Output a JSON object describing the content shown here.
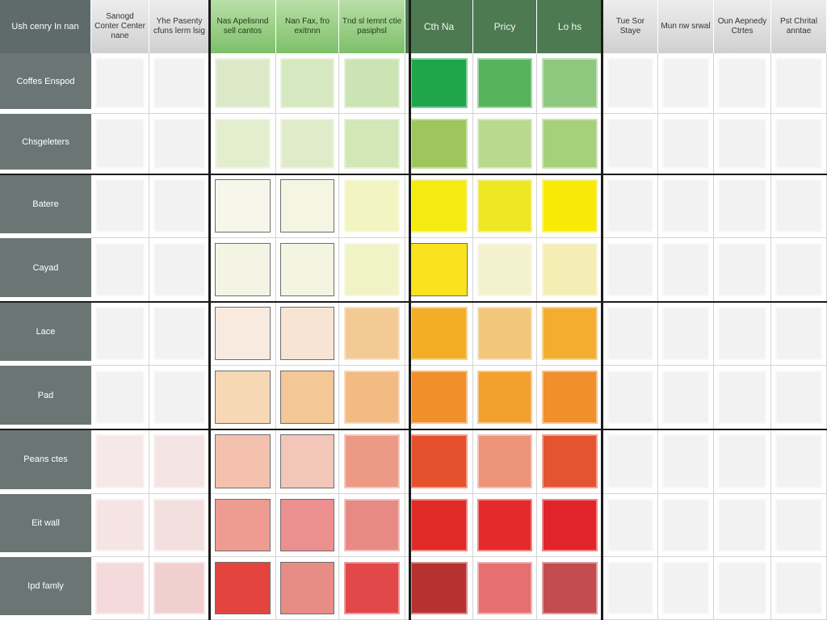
{
  "chart_data": {
    "type": "heatmap",
    "corner_label": "Ush cenry In nan",
    "columns": [
      {
        "label": "Sanogd Conter Center nane",
        "header_style": "gray"
      },
      {
        "label": "Yhe Pasenty cfuns lerm lsig",
        "header_style": "gray"
      },
      {
        "label": "Nas Apelisnnd sell cantos",
        "header_style": "light-green"
      },
      {
        "label": "Nan Fax, fro exitnnn",
        "header_style": "light-green"
      },
      {
        "label": "Tnd sl Iemnt ctie pasiphsl",
        "header_style": "light-green"
      },
      {
        "label": "Cth Na",
        "header_style": "dark-green"
      },
      {
        "label": "Pricy",
        "header_style": "dark-green"
      },
      {
        "label": "Lo hs",
        "header_style": "dark-green"
      },
      {
        "label": "Tue Sor Staye",
        "header_style": "gray"
      },
      {
        "label": "Mun nw srwal",
        "header_style": "gray"
      },
      {
        "label": "Oun Aepnedy Ctrtes",
        "header_style": "gray"
      },
      {
        "label": "Pst Chrital anntae",
        "header_style": "gray"
      }
    ],
    "rows": [
      {
        "label": "Coffes Enspod",
        "cells": [
          "#f2f2f2",
          "#f2f2f2",
          "#dbe9c9",
          "#d6e8c0",
          "#cce3b4",
          "#1fa64a",
          "#56b35c",
          "#8ec87f",
          "#f2f2f2",
          "#f2f2f2",
          "#f2f2f2",
          "#f2f2f2"
        ]
      },
      {
        "label": "Chsgeleters",
        "cells": [
          "#f2f2f2",
          "#f2f2f2",
          "#e4eecf",
          "#e0ecc9",
          "#d2e6b6",
          "#9dc75c",
          "#b9d98c",
          "#a7d07a",
          "#f2f2f2",
          "#f2f2f2",
          "#f2f2f2",
          "#f2f2f2"
        ]
      },
      {
        "label": "Batere",
        "cells": [
          "#f2f2f2",
          "#f2f2f2",
          "#f6f7ea",
          "#f4f5e3",
          "#f2f4c2",
          "#f4ec10",
          "#ede724",
          "#f8ea06",
          "#f2f2f2",
          "#f2f2f2",
          "#f2f2f2",
          "#f2f2f2"
        ]
      },
      {
        "label": "Cayad",
        "cells": [
          "#f2f2f2",
          "#f2f2f2",
          "#f4f4e4",
          "#f4f4e2",
          "#eff3c6",
          "#f9e31f",
          "#f4f1cf",
          "#f4edb4",
          "#f2f2f2",
          "#f2f2f2",
          "#f2f2f2",
          "#f2f2f2"
        ]
      },
      {
        "label": "Lace",
        "cells": [
          "#f2f2f2",
          "#f2f2f2",
          "#f8eadf",
          "#f7e4d2",
          "#f4ca94",
          "#f4ad27",
          "#f3c779",
          "#f3ae2f",
          "#f2f2f2",
          "#f2f2f2",
          "#f2f2f2",
          "#f2f2f2"
        ]
      },
      {
        "label": "Pad",
        "cells": [
          "#f2f2f2",
          "#f2f2f2",
          "#f7d8b4",
          "#f4c797",
          "#f2bb83",
          "#f18f2b",
          "#f2a02e",
          "#f08f2c",
          "#f2f2f2",
          "#f2f2f2",
          "#f2f2f2",
          "#f2f2f2"
        ]
      },
      {
        "label": "Peans ctes",
        "cells": [
          "#f6e8e8",
          "#f5e4e4",
          "#f3c1ae",
          "#f2c7b9",
          "#ec9a85",
          "#e6512d",
          "#ec947a",
          "#e45431",
          "#f2f2f2",
          "#f2f2f2",
          "#f2f2f2",
          "#f2f2f2"
        ]
      },
      {
        "label": "Eit wall",
        "cells": [
          "#f6e4e4",
          "#f4dfdf",
          "#ee9b92",
          "#ec8f8f",
          "#e88a84",
          "#df2a26",
          "#e42a2a",
          "#e1232b",
          "#f2f2f2",
          "#f2f2f2",
          "#f2f2f2",
          "#f2f2f2"
        ]
      },
      {
        "label": "Ipd famly",
        "cells": [
          "#f4dada",
          "#f1cfcf",
          "#e3453e",
          "#e78d86",
          "#e2474a",
          "#b53231",
          "#e66f70",
          "#c24c4f",
          "#f2f2f2",
          "#f2f2f2",
          "#f2f2f2",
          "#f2f2f2"
        ]
      }
    ],
    "outlined_cells": [
      [
        2,
        2
      ],
      [
        2,
        3
      ],
      [
        3,
        2
      ],
      [
        3,
        3
      ],
      [
        3,
        5
      ],
      [
        4,
        2
      ],
      [
        4,
        3
      ],
      [
        5,
        2
      ],
      [
        5,
        3
      ],
      [
        6,
        2
      ],
      [
        6,
        3
      ],
      [
        7,
        2
      ],
      [
        7,
        3
      ],
      [
        8,
        2
      ],
      [
        8,
        3
      ]
    ],
    "colors": {
      "header_gray": "#d9dbda",
      "header_light_green": "#8fcb7a",
      "header_dark_green": "#4e7a52",
      "row_label_bg": "#6b7674",
      "divider": "#1b1b1b"
    }
  }
}
